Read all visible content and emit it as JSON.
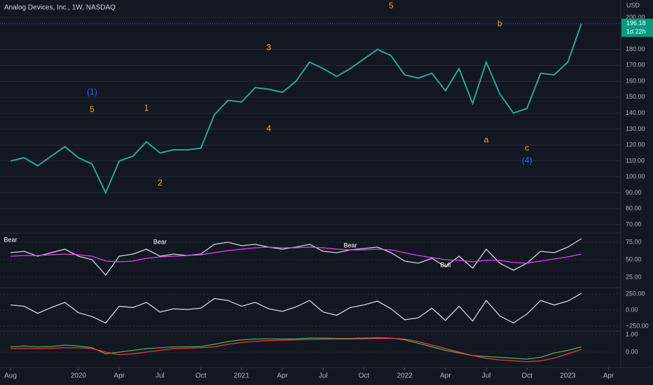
{
  "chart_data": [
    {
      "type": "line",
      "title": "Analog Devices, Inc., 1W, NASDAQ",
      "currency": "USD",
      "last_price": {
        "value": 196.18,
        "label": "196.18"
      },
      "countdown": "1d 22h",
      "x": [
        "2019-08",
        "2019-09",
        "2019-10",
        "2019-11",
        "2019-12",
        "2020-01",
        "2020-02",
        "2020-03",
        "2020-04",
        "2020-05",
        "2020-06",
        "2020-07",
        "2020-08",
        "2020-09",
        "2020-10",
        "2020-11",
        "2020-12",
        "2021-01",
        "2021-02",
        "2021-03",
        "2021-04",
        "2021-05",
        "2021-06",
        "2021-07",
        "2021-08",
        "2021-09",
        "2021-10",
        "2021-11",
        "2021-12",
        "2022-01",
        "2022-02",
        "2022-03",
        "2022-04",
        "2022-05",
        "2022-06",
        "2022-07",
        "2022-08",
        "2022-09",
        "2022-10",
        "2022-11",
        "2022-12",
        "2023-01",
        "2023-02"
      ],
      "series": [
        {
          "color": "#26a69a",
          "values": [
            110,
            112,
            107,
            113,
            119,
            112,
            108,
            90,
            110,
            113,
            122,
            115,
            117,
            117,
            118,
            139,
            148,
            147,
            156,
            155,
            153,
            160,
            172,
            168,
            163,
            168,
            174,
            180,
            176,
            164,
            162,
            165,
            154,
            168,
            146,
            172,
            152,
            140,
            143,
            165,
            164,
            172,
            196
          ]
        }
      ],
      "ylim": [
        65,
        209
      ],
      "yticks": [
        {
          "value": 70,
          "label": "70.00"
        },
        {
          "value": 80,
          "label": "80.00"
        },
        {
          "value": 90,
          "label": "90.00"
        },
        {
          "value": 100,
          "label": "100.00"
        },
        {
          "value": 110,
          "label": "110.00"
        },
        {
          "value": 120,
          "label": "120.00"
        },
        {
          "value": 130,
          "label": "130.00"
        },
        {
          "value": 140,
          "label": "140.00"
        },
        {
          "value": 150,
          "label": "150.00"
        },
        {
          "value": 160,
          "label": "160.00"
        },
        {
          "value": 170,
          "label": "170.00"
        },
        {
          "value": 180,
          "label": "180.00"
        },
        {
          "value": 200,
          "label": "200.00"
        }
      ],
      "xticks": [
        {
          "value": "2019-08",
          "label": "Aug"
        },
        {
          "value": "2020-01",
          "label": "2020"
        },
        {
          "value": "2020-04",
          "label": "Apr"
        },
        {
          "value": "2020-07",
          "label": "Jul"
        },
        {
          "value": "2020-10",
          "label": "Oct"
        },
        {
          "value": "2021-01",
          "label": "2021"
        },
        {
          "value": "2021-04",
          "label": "Apr"
        },
        {
          "value": "2021-07",
          "label": "Jul"
        },
        {
          "value": "2021-10",
          "label": "Oct"
        },
        {
          "value": "2022-01",
          "label": "2022"
        },
        {
          "value": "2022-04",
          "label": "Apr"
        },
        {
          "value": "2022-07",
          "label": "Jul"
        },
        {
          "value": "2022-10",
          "label": "Oct"
        },
        {
          "value": "2023-01",
          "label": "2023"
        },
        {
          "value": "2023-04",
          "label": "Apr"
        }
      ],
      "annotations": [
        {
          "text": "(1)",
          "x": "2020-02",
          "y": 153,
          "color": "#2962ff"
        },
        {
          "text": "5",
          "x": "2020-02",
          "y": 142,
          "color": "#f5a623"
        },
        {
          "text": "1",
          "x": "2020-06",
          "y": 143,
          "color": "#f5a623"
        },
        {
          "text": "2",
          "x": "2020-07",
          "y": 96,
          "color": "#f5a623"
        },
        {
          "text": "3",
          "x": "2021-03",
          "y": 181,
          "color": "#f5a623"
        },
        {
          "text": "4",
          "x": "2021-03",
          "y": 130,
          "color": "#f5a623"
        },
        {
          "text": "5",
          "x": "2021-12",
          "y": 207,
          "color": "#f5a623"
        },
        {
          "text": "b",
          "x": "2022-08",
          "y": 196,
          "color": "#f5a623"
        },
        {
          "text": "a",
          "x": "2022-07",
          "y": 123,
          "color": "#f5a623"
        },
        {
          "text": "c",
          "x": "2022-10",
          "y": 118,
          "color": "#f5a623"
        },
        {
          "text": "(4)",
          "x": "2022-10",
          "y": 110,
          "color": "#2962ff"
        }
      ]
    },
    {
      "type": "line",
      "series": [
        {
          "color": "#d1d4dc",
          "values": [
            60,
            62,
            55,
            60,
            65,
            55,
            50,
            28,
            55,
            58,
            65,
            55,
            58,
            56,
            58,
            72,
            75,
            70,
            72,
            68,
            65,
            68,
            72,
            62,
            60,
            64,
            66,
            68,
            60,
            48,
            45,
            52,
            40,
            55,
            38,
            65,
            45,
            35,
            45,
            62,
            60,
            68,
            80
          ]
        },
        {
          "color": "#e040fb",
          "values": [
            55,
            56,
            56,
            57,
            58,
            57,
            55,
            48,
            47,
            48,
            52,
            54,
            55,
            56,
            57,
            60,
            63,
            65,
            67,
            68,
            67,
            67,
            68,
            67,
            65,
            64,
            64,
            65,
            64,
            60,
            56,
            53,
            50,
            49,
            47,
            49,
            49,
            46,
            45,
            48,
            51,
            54,
            58
          ]
        }
      ],
      "ylim": [
        10,
        88
      ],
      "yticks": [
        {
          "value": 25,
          "label": "25.00"
        },
        {
          "value": 50,
          "label": "50.00"
        },
        {
          "value": 75,
          "label": "75.00"
        }
      ],
      "annotations": [
        {
          "text": "Bear",
          "x": "2019-08",
          "y": 78,
          "color": "#ffffff"
        },
        {
          "text": "Bear",
          "x": "2020-07",
          "y": 75,
          "color": "#ffffff"
        },
        {
          "text": "Bear",
          "x": "2021-09",
          "y": 70,
          "color": "#ffffff"
        },
        {
          "text": "Bull",
          "x": "2022-04",
          "y": 42,
          "color": "#ffffff"
        }
      ]
    },
    {
      "type": "line",
      "series": [
        {
          "color": "#d1d4dc",
          "values": [
            80,
            60,
            -50,
            40,
            120,
            -40,
            -100,
            -200,
            60,
            40,
            120,
            -30,
            20,
            10,
            30,
            180,
            150,
            60,
            120,
            20,
            -20,
            50,
            150,
            -30,
            -80,
            40,
            80,
            140,
            20,
            -150,
            -120,
            30,
            -160,
            60,
            -170,
            150,
            -90,
            -200,
            -60,
            150,
            80,
            140,
            260
          ]
        }
      ],
      "ylim": [
        -315,
        337
      ],
      "yticks": [
        {
          "value": 250,
          "label": "250.00"
        },
        {
          "value": 0,
          "label": "0.00"
        },
        {
          "value": -250,
          "label": "−250.00"
        }
      ]
    },
    {
      "type": "line",
      "series": [
        {
          "color": "#4caf50",
          "values": [
            0.3,
            0.35,
            0.3,
            0.32,
            0.4,
            0.35,
            0.25,
            -0.1,
            0.0,
            0.1,
            0.2,
            0.25,
            0.3,
            0.3,
            0.32,
            0.45,
            0.6,
            0.7,
            0.75,
            0.76,
            0.75,
            0.76,
            0.8,
            0.8,
            0.78,
            0.78,
            0.8,
            0.82,
            0.8,
            0.7,
            0.5,
            0.3,
            0.1,
            -0.05,
            -0.2,
            -0.25,
            -0.3,
            -0.35,
            -0.4,
            -0.3,
            -0.05,
            0.1,
            0.3
          ]
        },
        {
          "color": "#f23645",
          "values": [
            0.2,
            0.22,
            0.2,
            0.22,
            0.25,
            0.25,
            0.2,
            0.0,
            -0.15,
            -0.1,
            0.0,
            0.1,
            0.2,
            0.22,
            0.25,
            0.3,
            0.45,
            0.55,
            0.62,
            0.66,
            0.68,
            0.7,
            0.72,
            0.74,
            0.75,
            0.75,
            0.76,
            0.78,
            0.79,
            0.75,
            0.6,
            0.4,
            0.2,
            0.0,
            -0.2,
            -0.35,
            -0.45,
            -0.5,
            -0.55,
            -0.5,
            -0.35,
            -0.1,
            0.15
          ]
        }
      ],
      "ylim": [
        -0.88,
        1.16
      ],
      "yticks": [
        {
          "value": 1,
          "label": "1.00"
        },
        {
          "value": 0,
          "label": "0.00"
        }
      ]
    }
  ]
}
